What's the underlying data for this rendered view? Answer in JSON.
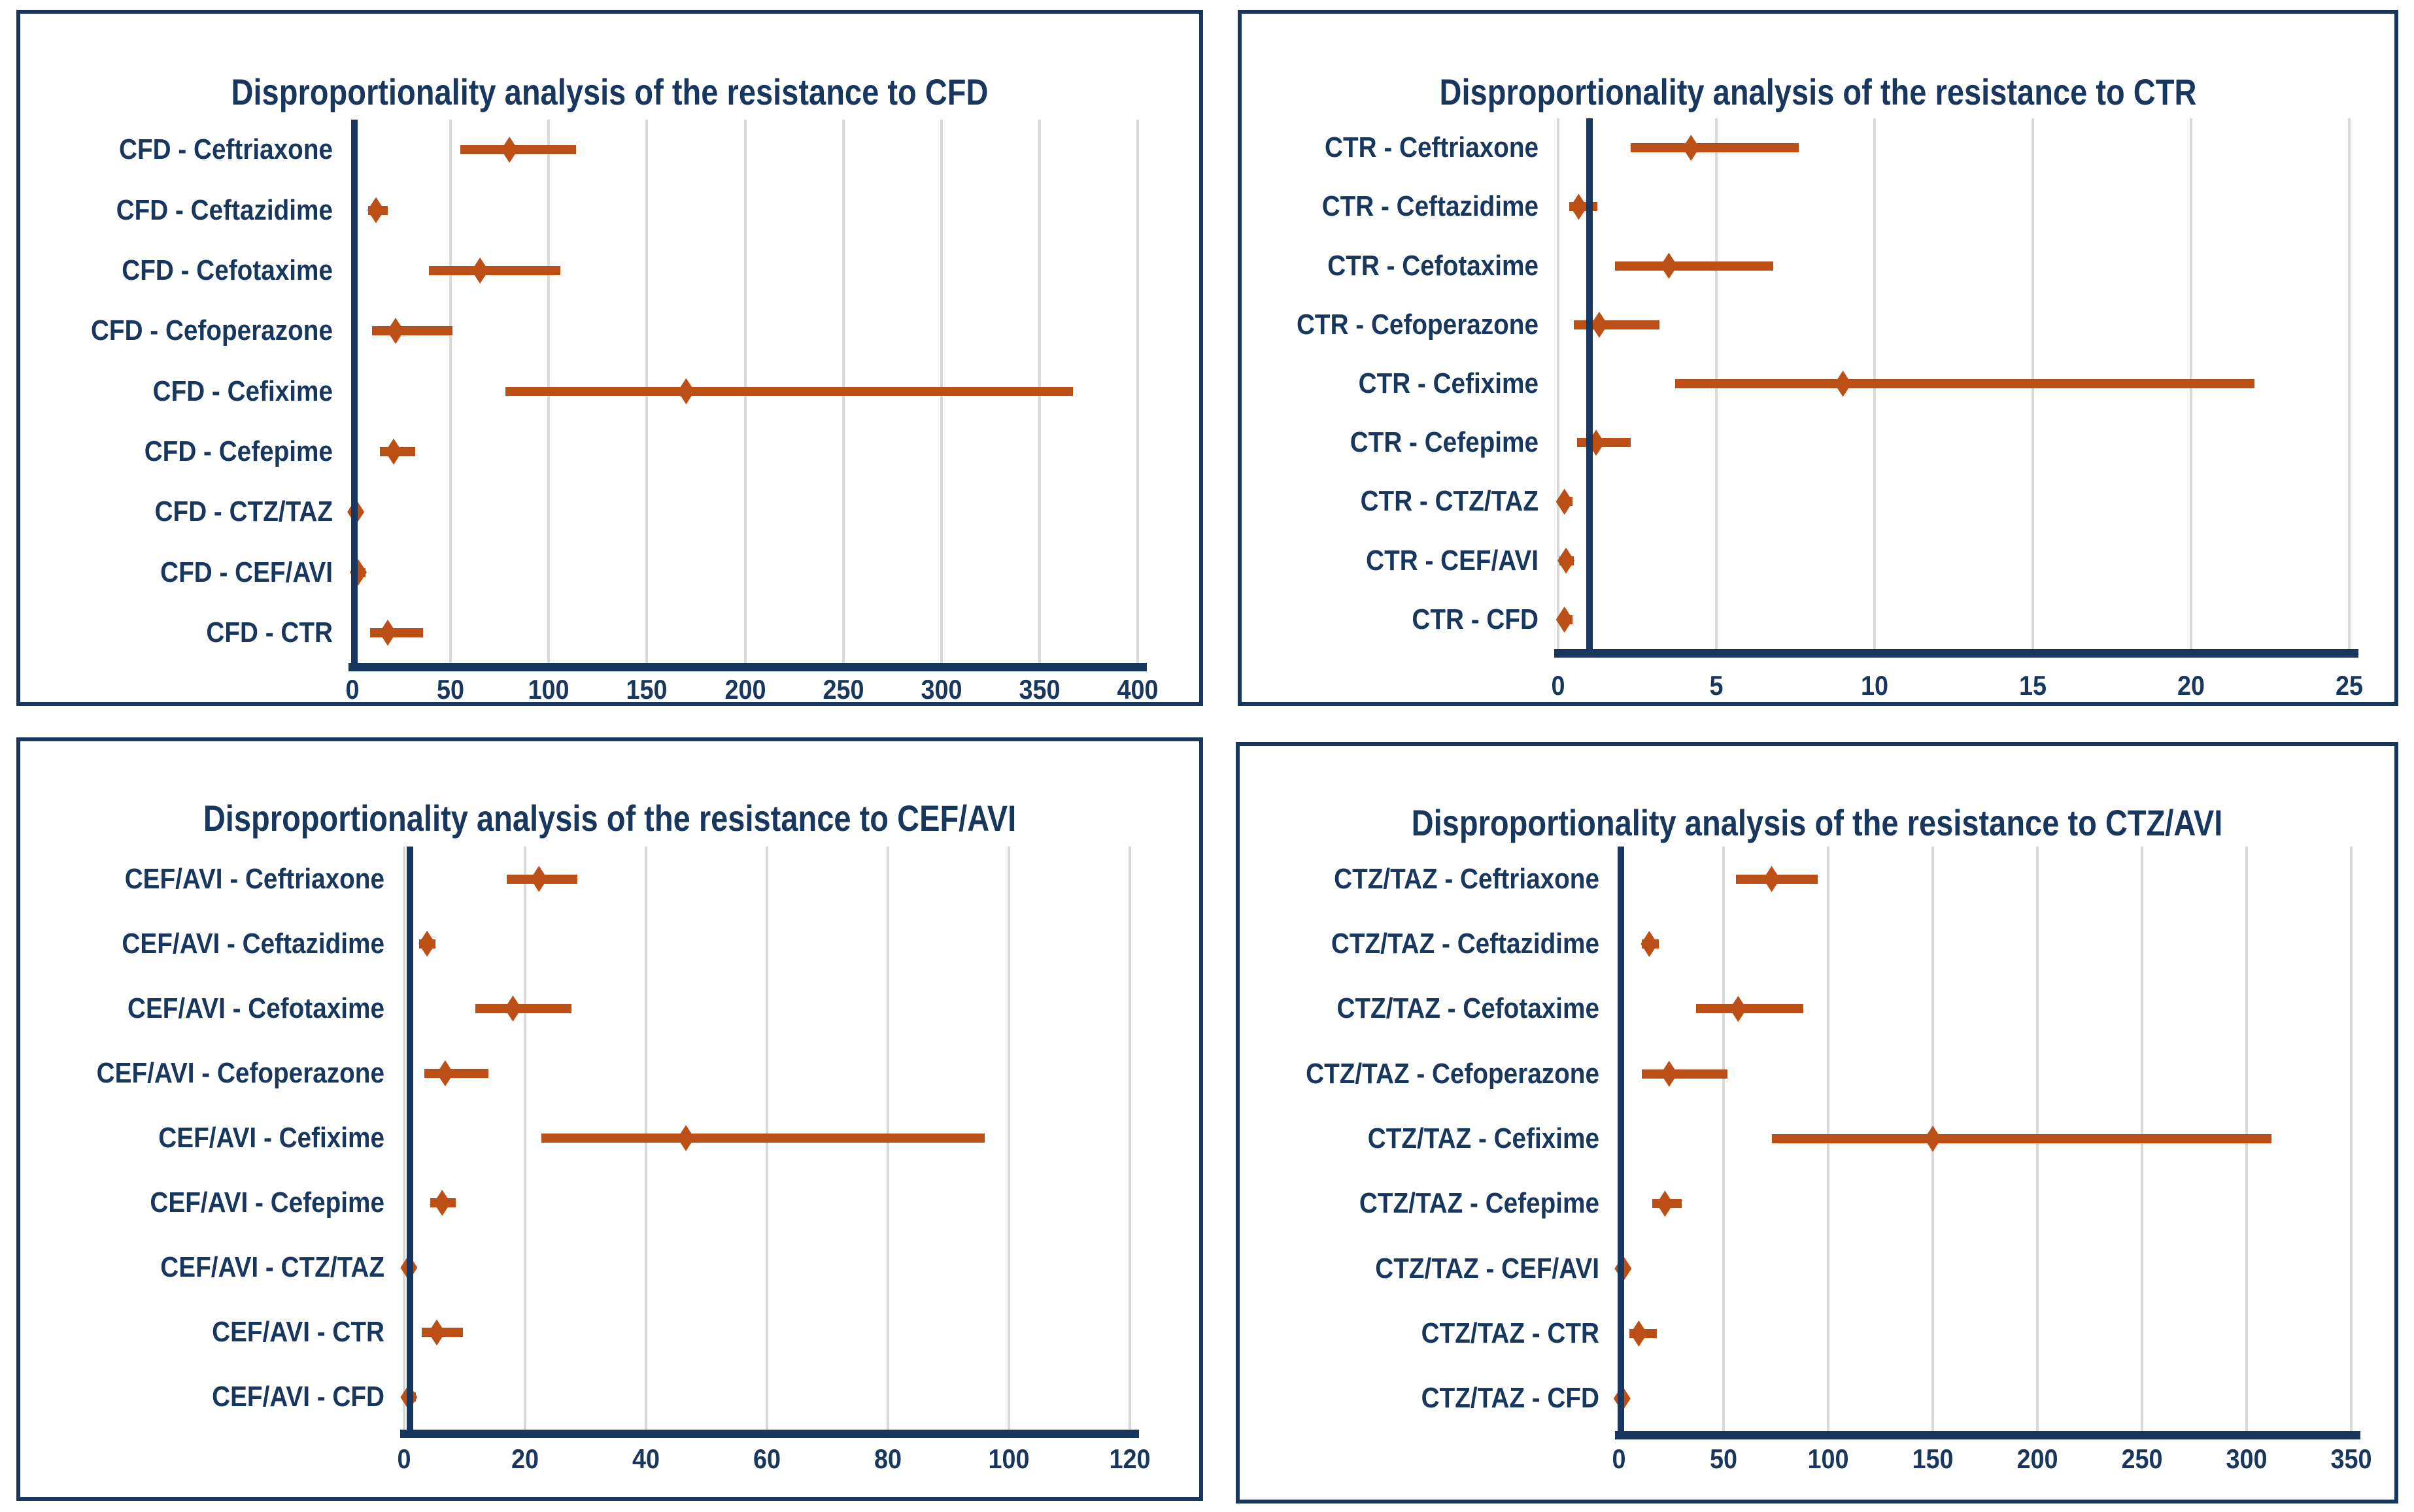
{
  "colors": {
    "navy": "#17375E",
    "marker_orange": "#BC4F15",
    "gridline_gray": "#D9D9D9",
    "background": "#FFFFFF"
  },
  "chart_data": [
    {
      "type": "scatter",
      "subtype": "forest-plot",
      "title": "Disproportionality analysis of the resistance to CFD",
      "orientation": "horizontal",
      "grid": true,
      "marker": "diamond",
      "reference_line_x": 1,
      "xlim": [
        0,
        400
      ],
      "x_ticks": [
        0,
        50,
        100,
        150,
        200,
        250,
        300,
        350,
        400
      ],
      "rows": [
        {
          "label": "CFD - Ceftriaxone",
          "low": 55,
          "mid": 80,
          "high": 114
        },
        {
          "label": "CFD - Ceftazidime",
          "low": 8,
          "mid": 12,
          "high": 18
        },
        {
          "label": "CFD - Cefotaxime",
          "low": 39,
          "mid": 65,
          "high": 106
        },
        {
          "label": "CFD - Cefoperazone",
          "low": 10,
          "mid": 22,
          "high": 51
        },
        {
          "label": "CFD - Cefixime",
          "low": 78,
          "mid": 170,
          "high": 367
        },
        {
          "label": "CFD - Cefepime",
          "low": 14,
          "mid": 21,
          "high": 32
        },
        {
          "label": "CFD - CTZ/TAZ",
          "low": 0.5,
          "mid": 1.7,
          "high": 4
        },
        {
          "label": "CFD - CEF/AVI",
          "low": 0.5,
          "mid": 3,
          "high": 6.5
        },
        {
          "label": "CFD - CTR",
          "low": 9,
          "mid": 18,
          "high": 36
        }
      ]
    },
    {
      "type": "scatter",
      "subtype": "forest-plot",
      "title": "Disproportionality analysis of the resistance to CTR",
      "orientation": "horizontal",
      "grid": true,
      "marker": "diamond",
      "reference_line_x": 1,
      "xlim": [
        0,
        25
      ],
      "x_ticks": [
        0,
        5,
        10,
        15,
        20,
        25
      ],
      "rows": [
        {
          "label": "CTR - Ceftriaxone",
          "low": 2.3,
          "mid": 4.2,
          "high": 7.6
        },
        {
          "label": "CTR - Ceftazidime",
          "low": 0.35,
          "mid": 0.65,
          "high": 1.25
        },
        {
          "label": "CTR - Cefotaxime",
          "low": 1.8,
          "mid": 3.5,
          "high": 6.8
        },
        {
          "label": "CTR - Cefoperazone",
          "low": 0.5,
          "mid": 1.3,
          "high": 3.2
        },
        {
          "label": "CTR - Cefixime",
          "low": 3.7,
          "mid": 9,
          "high": 22
        },
        {
          "label": "CTR - Cefepime",
          "low": 0.6,
          "mid": 1.2,
          "high": 2.3
        },
        {
          "label": "CTR - CTZ/TAZ",
          "low": 0.05,
          "mid": 0.2,
          "high": 0.45
        },
        {
          "label": "CTR - CEF/AVI",
          "low": 0.05,
          "mid": 0.25,
          "high": 0.5
        },
        {
          "label": "CTR - CFD",
          "low": 0.05,
          "mid": 0.2,
          "high": 0.45
        }
      ]
    },
    {
      "type": "scatter",
      "subtype": "forest-plot",
      "title": "Disproportionality analysis of the resistance to CEF/AVI",
      "orientation": "horizontal",
      "grid": true,
      "marker": "diamond",
      "reference_line_x": 1,
      "xlim": [
        0,
        120
      ],
      "x_ticks": [
        0,
        20,
        40,
        60,
        80,
        100,
        120
      ],
      "rows": [
        {
          "label": "CEF/AVI - Ceftriaxone",
          "low": 17,
          "mid": 22.3,
          "high": 28.7
        },
        {
          "label": "CEF/AVI - Ceftazidime",
          "low": 2.5,
          "mid": 3.8,
          "high": 5.2
        },
        {
          "label": "CEF/AVI - Cefotaxime",
          "low": 11.8,
          "mid": 18,
          "high": 27.7
        },
        {
          "label": "CEF/AVI - Cefoperazone",
          "low": 3.4,
          "mid": 6.8,
          "high": 13.9
        },
        {
          "label": "CEF/AVI - Cefixime",
          "low": 22.7,
          "mid": 46.6,
          "high": 96
        },
        {
          "label": "CEF/AVI - Cefepime",
          "low": 4.3,
          "mid": 6.3,
          "high": 8.5
        },
        {
          "label": "CEF/AVI - CTZ/TAZ",
          "low": 0.3,
          "mid": 0.8,
          "high": 1.7
        },
        {
          "label": "CEF/AVI - CTR",
          "low": 2.9,
          "mid": 5.4,
          "high": 9.7
        },
        {
          "label": "CEF/AVI - CFD",
          "low": 0.3,
          "mid": 0.8,
          "high": 1.9
        }
      ]
    },
    {
      "type": "scatter",
      "subtype": "forest-plot",
      "title": "Disproportionality analysis of the resistance to CTZ/AVI",
      "orientation": "horizontal",
      "grid": true,
      "marker": "diamond",
      "reference_line_x": 1,
      "xlim": [
        0,
        350
      ],
      "x_ticks": [
        0,
        50,
        100,
        150,
        200,
        250,
        300,
        350
      ],
      "rows": [
        {
          "label": "CTZ/TAZ - Ceftriaxone",
          "low": 56,
          "mid": 73,
          "high": 95
        },
        {
          "label": "CTZ/TAZ - Ceftazidime",
          "low": 11,
          "mid": 14.5,
          "high": 19
        },
        {
          "label": "CTZ/TAZ - Cefotaxime",
          "low": 37,
          "mid": 57,
          "high": 88
        },
        {
          "label": "CTZ/TAZ - Cefoperazone",
          "low": 11,
          "mid": 24,
          "high": 52
        },
        {
          "label": "CTZ/TAZ - Cefixime",
          "low": 73,
          "mid": 150,
          "high": 312
        },
        {
          "label": "CTZ/TAZ - Cefepime",
          "low": 16,
          "mid": 22,
          "high": 30
        },
        {
          "label": "CTZ/TAZ - CEF/AVI",
          "low": 0.5,
          "mid": 2,
          "high": 4.5
        },
        {
          "label": "CTZ/TAZ - CTR",
          "low": 5,
          "mid": 9.5,
          "high": 18
        },
        {
          "label": "CTZ/TAZ - CFD",
          "low": 0.3,
          "mid": 1.5,
          "high": 3.2
        }
      ]
    }
  ]
}
